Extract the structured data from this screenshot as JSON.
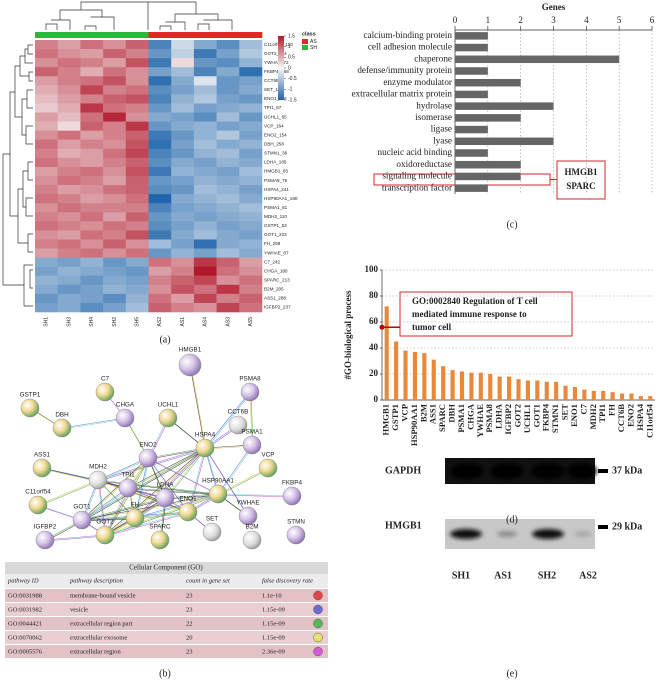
{
  "panel_labels": [
    "(a)",
    "(b)",
    "(c)",
    "(d)",
    "(e)"
  ],
  "chart_data": [
    {
      "type": "heatmap",
      "legend_title": "class",
      "groups": [
        {
          "name": "AS",
          "color": "#e32626"
        },
        {
          "name": "SH",
          "color": "#2db83d"
        }
      ],
      "columns": [
        "SH1",
        "SH3",
        "SH4",
        "SH2",
        "SH5",
        "AS2",
        "AS1",
        "AS4",
        "AS3",
        "AS5"
      ],
      "column_class": [
        1,
        1,
        1,
        1,
        1,
        0,
        0,
        0,
        0,
        0
      ],
      "rows": [
        "C11orf54_120",
        "GOT2_134",
        "YWHAE_72",
        "FKBP4_168",
        "CCT6B_0",
        "SET_135",
        "ENO1_156",
        "TPI1_67",
        "UCHL1_65",
        "VCP_164",
        "ENO2_154",
        "DBH_258",
        "STMN1_36",
        "LDHA_185",
        "HMGB1_85",
        "PSMA8_75",
        "HSPA4_241",
        "HSP90AA1_180",
        "PSMA1_81",
        "MDH2_110",
        "GSTP1_53",
        "GOT1_223",
        "FH_259",
        "YWHAE_87",
        "C7_242",
        "CHGA_180",
        "SPARC_213",
        "B2M_205",
        "ASS1_288",
        "IGFBP2_237"
      ],
      "values": [
        [
          0.8,
          0.6,
          0.9,
          0.7,
          1.0,
          -1.2,
          -0.3,
          -0.8,
          -1.1,
          -0.6
        ],
        [
          0.9,
          0.7,
          0.6,
          1.0,
          0.8,
          -1.0,
          -0.4,
          -1.3,
          -0.9,
          -0.5
        ],
        [
          0.7,
          0.9,
          0.8,
          0.6,
          1.1,
          -1.3,
          0.2,
          -1.0,
          -1.1,
          -0.7
        ],
        [
          1.0,
          0.8,
          0.5,
          0.9,
          0.7,
          -0.9,
          -0.6,
          -1.2,
          -0.8,
          -1.4
        ],
        [
          0.6,
          0.8,
          0.9,
          1.1,
          0.7,
          -1.4,
          -0.8,
          -0.2,
          -1.0,
          -0.9
        ],
        [
          0.5,
          0.7,
          1.2,
          0.8,
          0.9,
          -1.1,
          -0.9,
          -0.6,
          -1.0,
          -0.8
        ],
        [
          0.4,
          0.6,
          0.8,
          1.0,
          1.1,
          -1.2,
          -0.7,
          -0.5,
          -0.9,
          -1.0
        ],
        [
          0.3,
          0.5,
          1.3,
          0.9,
          0.8,
          -1.0,
          -0.6,
          -0.9,
          -0.8,
          -0.7
        ],
        [
          0.6,
          0.4,
          0.9,
          1.4,
          0.7,
          -0.8,
          -0.9,
          -1.1,
          -0.6,
          -1.0
        ],
        [
          0.5,
          0.2,
          1.0,
          0.8,
          1.3,
          -1.0,
          -0.8,
          -0.7,
          -0.9,
          -0.8
        ],
        [
          0.7,
          0.9,
          0.6,
          0.8,
          1.0,
          -1.3,
          -1.0,
          -0.7,
          -0.5,
          -0.9
        ],
        [
          0.9,
          0.6,
          0.8,
          0.7,
          1.1,
          -1.4,
          -0.9,
          -0.6,
          -0.8,
          -0.7
        ],
        [
          0.8,
          0.5,
          0.6,
          0.9,
          1.2,
          -1.2,
          -1.0,
          -0.7,
          -0.6,
          -0.9
        ],
        [
          0.9,
          0.7,
          0.6,
          0.8,
          1.0,
          -1.1,
          -0.8,
          -0.9,
          -0.7,
          -0.8
        ],
        [
          0.6,
          0.8,
          0.9,
          0.7,
          1.1,
          -1.3,
          -0.7,
          -0.8,
          -0.9,
          -0.6
        ],
        [
          0.7,
          0.9,
          0.8,
          0.6,
          1.0,
          -1.0,
          -0.9,
          -0.7,
          -0.8,
          -0.7
        ],
        [
          0.8,
          0.6,
          0.7,
          0.9,
          1.0,
          -1.1,
          -1.0,
          -0.6,
          -0.7,
          -0.9
        ],
        [
          0.9,
          0.8,
          0.6,
          0.7,
          0.9,
          -1.5,
          -0.8,
          -0.7,
          -0.6,
          -0.8
        ],
        [
          0.7,
          0.9,
          0.8,
          0.8,
          0.8,
          -1.2,
          -0.9,
          -0.8,
          -0.7,
          -0.6
        ],
        [
          0.8,
          0.7,
          0.9,
          0.6,
          1.0,
          -1.0,
          -0.8,
          -0.9,
          -0.8,
          -0.7
        ],
        [
          0.9,
          0.8,
          0.7,
          0.9,
          0.8,
          -1.1,
          -0.9,
          -0.7,
          -0.9,
          -0.8
        ],
        [
          0.7,
          0.6,
          0.9,
          0.8,
          1.1,
          -1.3,
          -0.8,
          -0.6,
          -0.8,
          -0.9
        ],
        [
          0.8,
          0.9,
          0.7,
          1.0,
          0.7,
          -0.6,
          -0.9,
          -1.4,
          -0.8,
          -0.7
        ],
        [
          0.6,
          0.8,
          0.9,
          0.7,
          0.9,
          -1.0,
          -0.7,
          -0.9,
          -0.6,
          -0.8
        ],
        [
          -0.8,
          -0.9,
          -0.7,
          -1.0,
          -0.8,
          0.9,
          0.7,
          1.3,
          1.0,
          0.6
        ],
        [
          -0.9,
          -0.7,
          -0.8,
          -0.9,
          -1.0,
          0.6,
          0.8,
          1.5,
          0.9,
          0.7
        ],
        [
          -0.7,
          -0.8,
          -1.0,
          -0.8,
          -0.9,
          0.8,
          1.0,
          1.2,
          0.7,
          0.9
        ],
        [
          -0.8,
          -1.0,
          -0.9,
          -0.7,
          -0.8,
          0.7,
          1.1,
          0.9,
          1.3,
          0.8
        ],
        [
          -1.0,
          -0.8,
          -0.9,
          -1.1,
          -0.7,
          0.9,
          0.6,
          1.2,
          0.8,
          1.0
        ],
        [
          -0.9,
          -0.8,
          -1.1,
          -0.9,
          -0.6,
          1.0,
          0.8,
          0.7,
          1.2,
          0.9
        ]
      ],
      "zlim": [
        -1.5,
        1.5
      ],
      "zticks": [
        1.5,
        1,
        0.5,
        0,
        -0.5,
        -1,
        -1.5
      ],
      "colors": [
        "#2166ac",
        "#f7f7f7",
        "#b2182b"
      ]
    },
    {
      "type": "bar",
      "orientation": "horizontal",
      "x_label": "Genes",
      "categories": [
        "calcium-binding protein",
        "cell adhesion molecule",
        "chaperone",
        "defense/immunity protein",
        "enzyme modulator",
        "extracellular matrix protein",
        "hydrolase",
        "isomerase",
        "ligase",
        "lyase",
        "nucleic acid binding",
        "oxidoreductase",
        "signaling molecule",
        "transcription factor"
      ],
      "values": [
        1,
        1,
        5,
        1,
        2,
        1,
        3,
        2,
        1,
        3,
        1,
        2,
        2,
        1
      ],
      "xlim": [
        0,
        6
      ],
      "xticks": [
        0,
        1,
        2,
        3,
        4,
        5,
        6
      ],
      "color": "#666666",
      "grid": true,
      "annotation": [
        "HMGB1",
        "SPARC"
      ]
    },
    {
      "type": "bar",
      "orientation": "vertical",
      "y_label": "#GO-biological process",
      "categories": [
        "HMGB1",
        "GSTP1",
        "VCP",
        "HSP90AA1",
        "B2M",
        "ASS1",
        "SPARC",
        "DBH",
        "PSMA1",
        "CHGA",
        "YWHAE",
        "PSMA8",
        "LDHA",
        "IGFBP2",
        "GOT2",
        "UCHL1",
        "GOT1",
        "FKBP4",
        "STMN1",
        "SET",
        "ENO1",
        "C7",
        "MDH2",
        "TPI1",
        "FH",
        "CCT6B",
        "ENO2",
        "HSPA4",
        "C11orf54"
      ],
      "values": [
        72,
        45,
        38,
        37,
        36,
        31,
        26,
        23,
        22,
        21,
        21,
        20,
        18,
        18,
        16,
        15,
        15,
        14,
        14,
        11,
        10,
        8,
        7,
        7,
        6,
        5,
        5,
        3,
        3
      ],
      "ylim": [
        0,
        100
      ],
      "yticks": [
        0,
        20,
        40,
        60,
        80,
        100
      ],
      "color": "#e8883a",
      "grid": true,
      "annotation": [
        "GO:0002840 Regulation of T cell",
        "mediated immune response to",
        "tumor cell"
      ],
      "annotation_level": 56
    }
  ],
  "network": {
    "nodes": [
      "HMGB1",
      "C7",
      "PSMA8",
      "GSTP1",
      "CHGA",
      "UCHL1",
      "CCT6B",
      "DBH",
      "PSMA1",
      "HSPA4",
      "ENO2",
      "ASS1",
      "MDH2",
      "VCP",
      "TPI1",
      "HSP90AA1",
      "FKBP4",
      "C11orf54",
      "LDHA",
      "ENO1",
      "GOT1",
      "FH",
      "YWHAE",
      "GOT2",
      "IGFBP2",
      "SPARC",
      "SET",
      "B2M",
      "STMN"
    ]
  },
  "table": {
    "title": "Cellular Component (GO)",
    "columns": [
      "pathway ID",
      "pathway description",
      "count in gene set",
      "false discovery rate"
    ],
    "rows": [
      [
        "GO:0031988",
        "membrane-bound vesicle",
        "23",
        "1.1e-10"
      ],
      [
        "GO:0031982",
        "vesicle",
        "23",
        "1.15e-09"
      ],
      [
        "GO:0044421",
        "extracellular region part",
        "22",
        "1.15e-09"
      ],
      [
        "GO:0070062",
        "extracellular exosome",
        "20",
        "1.15e-09"
      ],
      [
        "GO:0005576",
        "extracellular region",
        "23",
        "2.36e-09"
      ]
    ]
  },
  "blot": {
    "bands": [
      "GAPDH",
      "HMGB1"
    ],
    "sizes": [
      "37 kDa",
      "29 kDa"
    ],
    "lanes": [
      "SH1",
      "AS1",
      "SH2",
      "AS2"
    ]
  }
}
